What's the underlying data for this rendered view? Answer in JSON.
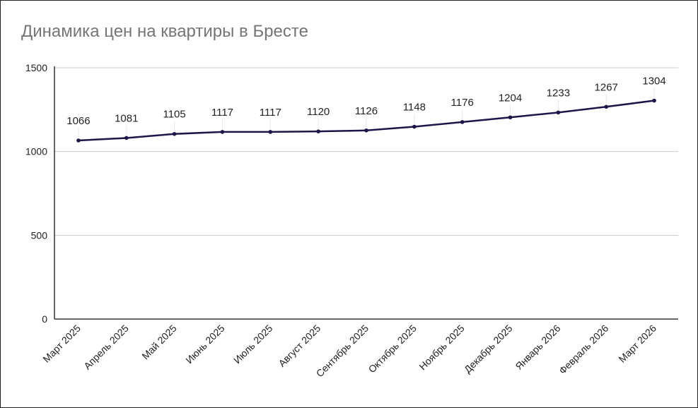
{
  "chart_data": {
    "type": "line",
    "title": "Динамика цен на квартиры в Бресте",
    "xlabel": "",
    "ylabel": "",
    "categories": [
      "Март 2025",
      "Апрель 2025",
      "Май 2025",
      "Июнь 2025",
      "Июль 2025",
      "Август 2025",
      "Сентябрь 2025",
      "Октябрь 2025",
      "Ноябрь 2025",
      "Декабрь 2025",
      "Январь 2026",
      "Февраль 2026",
      "Март 2026"
    ],
    "values": [
      1066,
      1081,
      1105,
      1117,
      1117,
      1120,
      1126,
      1148,
      1176,
      1204,
      1233,
      1267,
      1304
    ],
    "ylim": [
      0,
      1500
    ],
    "yticks": [
      0,
      500,
      1000,
      1500
    ],
    "grid": true,
    "data_labels": true,
    "line_color": "#1e1548"
  }
}
